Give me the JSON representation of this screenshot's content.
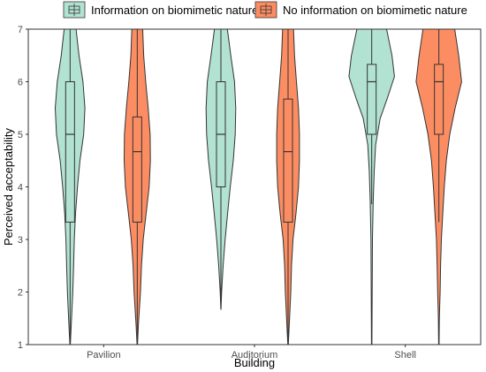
{
  "chart_data": {
    "type": "violin",
    "title": "",
    "xlabel": "Building",
    "ylabel": "Perceived acceptability",
    "ylim": [
      1,
      7
    ],
    "yticks": [
      "1",
      "2",
      "3",
      "4",
      "5",
      "6",
      "7"
    ],
    "categories": [
      "Pavilion",
      "Auditorium",
      "Shell"
    ],
    "grid": false,
    "legend_position": "top",
    "series": [
      {
        "name": "Information on biomimetic nature",
        "color": "#b2e2d1",
        "boxes": [
          {
            "q1": 3.33,
            "median": 5.0,
            "q3": 6.0,
            "min": 1.0,
            "max": 7.0
          },
          {
            "q1": 4.0,
            "median": 5.0,
            "q3": 6.0,
            "min": 1.67,
            "max": 7.0
          },
          {
            "q1": 5.0,
            "median": 6.0,
            "q3": 6.33,
            "min": 3.67,
            "max": 7.0
          }
        ],
        "density": [
          [
            [
              1.0,
              0.01
            ],
            [
              1.4,
              0.05
            ],
            [
              2.0,
              0.11
            ],
            [
              2.5,
              0.14
            ],
            [
              3.0,
              0.17
            ],
            [
              3.5,
              0.22
            ],
            [
              4.0,
              0.3
            ],
            [
              4.5,
              0.4
            ],
            [
              5.0,
              0.55
            ],
            [
              5.5,
              0.6
            ],
            [
              6.0,
              0.52
            ],
            [
              6.5,
              0.36
            ],
            [
              7.0,
              0.24
            ]
          ],
          [
            [
              1.67,
              0.005
            ],
            [
              2.0,
              0.03
            ],
            [
              2.5,
              0.09
            ],
            [
              3.0,
              0.17
            ],
            [
              3.5,
              0.27
            ],
            [
              4.0,
              0.38
            ],
            [
              4.5,
              0.5
            ],
            [
              5.0,
              0.58
            ],
            [
              5.5,
              0.6
            ],
            [
              6.0,
              0.55
            ],
            [
              6.5,
              0.4
            ],
            [
              7.0,
              0.26
            ]
          ],
          [
            [
              1.0,
              0.01
            ],
            [
              2.0,
              0.02
            ],
            [
              3.0,
              0.03
            ],
            [
              3.7,
              0.06
            ],
            [
              4.3,
              0.1
            ],
            [
              4.8,
              0.16
            ],
            [
              5.3,
              0.34
            ],
            [
              5.7,
              0.64
            ],
            [
              6.1,
              0.92
            ],
            [
              6.5,
              0.82
            ],
            [
              7.0,
              0.6
            ]
          ]
        ]
      },
      {
        "name": "No information on biomimetic nature",
        "color": "#fc8d62",
        "boxes": [
          {
            "q1": 3.33,
            "median": 4.67,
            "q3": 5.33,
            "min": 1.0,
            "max": 7.0
          },
          {
            "q1": 3.33,
            "median": 4.67,
            "q3": 5.67,
            "min": 1.0,
            "max": 7.0
          },
          {
            "q1": 5.0,
            "median": 6.0,
            "q3": 6.33,
            "min": 3.33,
            "max": 7.0
          }
        ],
        "density": [
          [
            [
              1.0,
              0.01
            ],
            [
              1.4,
              0.05
            ],
            [
              2.0,
              0.13
            ],
            [
              2.5,
              0.17
            ],
            [
              3.0,
              0.24
            ],
            [
              3.5,
              0.36
            ],
            [
              4.0,
              0.48
            ],
            [
              4.5,
              0.53
            ],
            [
              5.0,
              0.52
            ],
            [
              5.5,
              0.44
            ],
            [
              6.0,
              0.34
            ],
            [
              6.5,
              0.26
            ],
            [
              7.0,
              0.22
            ]
          ],
          [
            [
              1.0,
              0.01
            ],
            [
              1.5,
              0.06
            ],
            [
              2.0,
              0.11
            ],
            [
              2.5,
              0.14
            ],
            [
              3.0,
              0.2
            ],
            [
              3.5,
              0.32
            ],
            [
              4.0,
              0.42
            ],
            [
              4.5,
              0.46
            ],
            [
              5.0,
              0.46
            ],
            [
              5.5,
              0.42
            ],
            [
              6.0,
              0.34
            ],
            [
              6.5,
              0.26
            ],
            [
              7.0,
              0.22
            ]
          ],
          [
            [
              1.0,
              0.01
            ],
            [
              1.5,
              0.02
            ],
            [
              2.0,
              0.05
            ],
            [
              2.5,
              0.07
            ],
            [
              3.0,
              0.1
            ],
            [
              3.5,
              0.16
            ],
            [
              4.0,
              0.22
            ],
            [
              4.5,
              0.3
            ],
            [
              5.0,
              0.44
            ],
            [
              5.5,
              0.66
            ],
            [
              6.0,
              0.92
            ],
            [
              6.5,
              0.8
            ],
            [
              7.0,
              0.64
            ]
          ]
        ]
      }
    ]
  }
}
